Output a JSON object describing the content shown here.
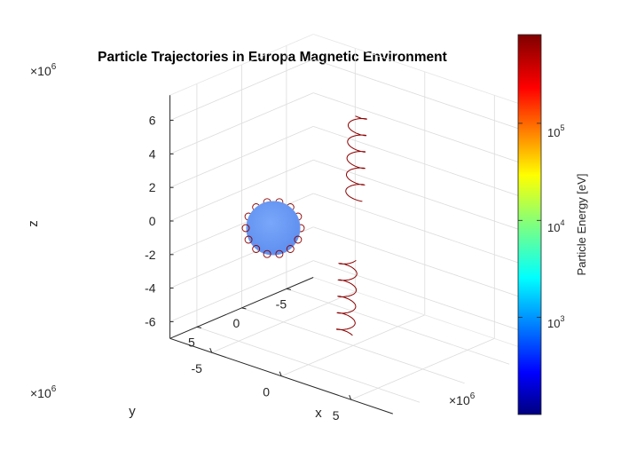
{
  "chart_data": {
    "type": "3d-line",
    "title": "Particle Trajectories in Europa Magnetic Environment",
    "xlabel": "x",
    "ylabel": "y",
    "zlabel": "z",
    "x_ticks": [
      "-5",
      "0",
      "5"
    ],
    "y_ticks": [
      "5",
      "0",
      "-5"
    ],
    "z_ticks": [
      "6",
      "4",
      "2",
      "0",
      "-2",
      "-4",
      "-6"
    ],
    "exponent_label": "×10",
    "exponent_power": "6",
    "xlim": [
      -8000000,
      8000000
    ],
    "ylim": [
      -8000000,
      8000000
    ],
    "zlim": [
      -7000000,
      7500000
    ],
    "grid": true,
    "moon": {
      "name": "Europa",
      "radius": 1561000,
      "color": "#6f9ef5"
    },
    "trajectory_color": "#8b0000",
    "colorbar": {
      "label": "Particle Energy [eV]",
      "scale": "log",
      "ticks": [
        "10",
        "10",
        "10"
      ],
      "tick_powers": [
        "5",
        "4",
        "3"
      ],
      "range_ev": [
        100,
        1000000
      ],
      "colormap": "jet",
      "placement": "right"
    }
  }
}
